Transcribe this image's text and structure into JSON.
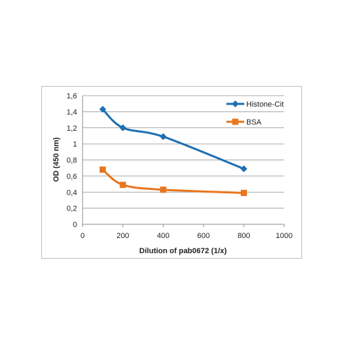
{
  "chart_data": {
    "type": "line",
    "title": "",
    "xlabel": "Dilution of pab0672 (1/x)",
    "ylabel": "OD (450 nm)",
    "xlim": [
      0,
      1000
    ],
    "ylim": [
      0,
      1.6
    ],
    "x_ticks": [
      0,
      200,
      400,
      600,
      800,
      1000
    ],
    "x_tick_labels": [
      "0",
      "200",
      "400",
      "600",
      "800",
      "1000"
    ],
    "y_ticks": [
      0,
      0.2,
      0.4,
      0.6,
      0.8,
      1.0,
      1.2,
      1.4,
      1.6
    ],
    "y_tick_labels": [
      "0",
      "0,2",
      "0,4",
      "0,6",
      "0,8",
      "1",
      "1,2",
      "1,4",
      "1,6"
    ],
    "grid": "horizontal",
    "legend_position": "top-right",
    "series": [
      {
        "name": "Histone-Cit",
        "color": "#1f6fb2",
        "marker": "diamond",
        "x": [
          100,
          200,
          400,
          800
        ],
        "y": [
          1.43,
          1.2,
          1.09,
          0.69
        ]
      },
      {
        "name": "BSA",
        "color": "#e8761e",
        "marker": "square",
        "x": [
          100,
          200,
          400,
          800
        ],
        "y": [
          0.68,
          0.49,
          0.43,
          0.39
        ]
      }
    ]
  }
}
